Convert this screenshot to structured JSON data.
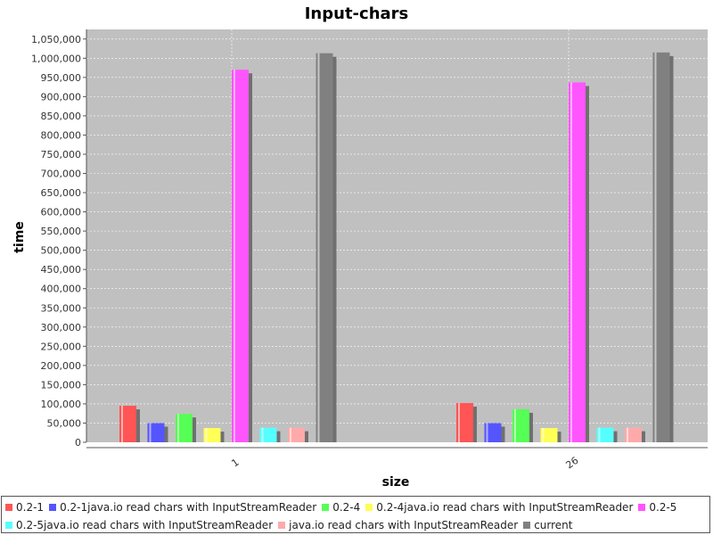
{
  "chart_data": {
    "type": "bar",
    "title": "Input-chars",
    "xlabel": "size",
    "ylabel": "time",
    "categories": [
      "1",
      "26"
    ],
    "ylim": [
      0,
      1075000
    ],
    "yticks": [
      0,
      50000,
      100000,
      150000,
      200000,
      250000,
      300000,
      350000,
      400000,
      450000,
      500000,
      550000,
      600000,
      650000,
      700000,
      750000,
      800000,
      850000,
      900000,
      950000,
      1000000,
      1050000
    ],
    "ytick_labels": [
      "0",
      "50,000",
      "100,000",
      "150,000",
      "200,000",
      "250,000",
      "300,000",
      "350,000",
      "400,000",
      "450,000",
      "500,000",
      "550,000",
      "600,000",
      "650,000",
      "700,000",
      "750,000",
      "800,000",
      "850,000",
      "900,000",
      "950,000",
      "1,000,000",
      "1,050,000"
    ],
    "grid": true,
    "legend_position": "bottom",
    "series": [
      {
        "name": "0.2-1",
        "color": "#ff5555",
        "values": [
          95000,
          102000
        ]
      },
      {
        "name": "0.2-1java.io read chars with InputStreamReader",
        "color": "#5555ff",
        "values": [
          50000,
          50000
        ]
      },
      {
        "name": "0.2-4",
        "color": "#55ff55",
        "values": [
          74000,
          86000
        ]
      },
      {
        "name": "0.2-4java.io read chars with InputStreamReader",
        "color": "#ffff55",
        "values": [
          37000,
          37000
        ]
      },
      {
        "name": "0.2-5",
        "color": "#ff55ff",
        "values": [
          970000,
          937000
        ]
      },
      {
        "name": "0.2-5java.io read chars with InputStreamReader",
        "color": "#55ffff",
        "values": [
          38000,
          38000
        ]
      },
      {
        "name": "java.io read chars with InputStreamReader",
        "color": "#ffaaaa",
        "values": [
          38000,
          38000
        ]
      },
      {
        "name": "current",
        "color": "#808080",
        "values": [
          1013000,
          1015000
        ]
      }
    ]
  },
  "colors": {
    "plot_background": "#c0c0c0",
    "gridline": "#ffffff"
  }
}
